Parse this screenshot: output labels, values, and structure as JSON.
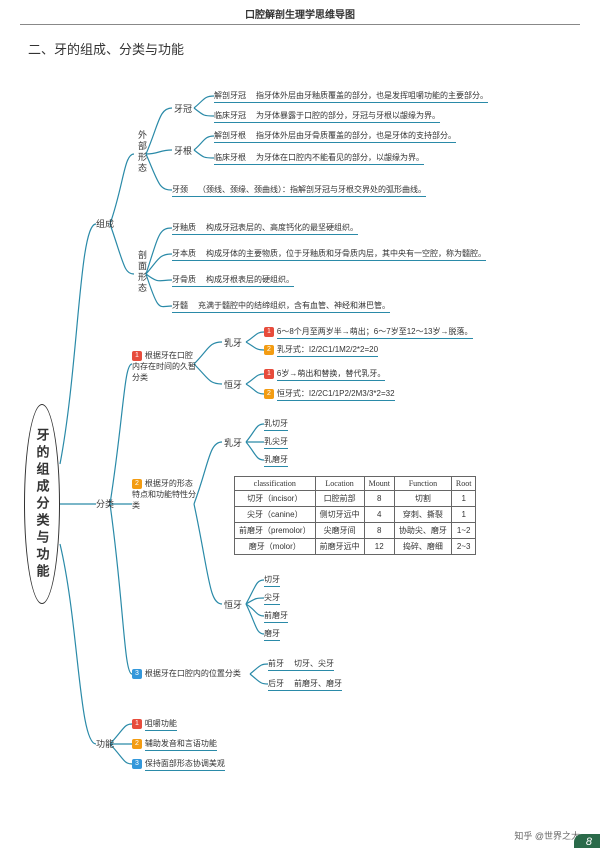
{
  "doc_header": "口腔解剖生理学思维导图",
  "section_title": "二、牙的组成、分类与功能",
  "root_label": "牙的组成分类与功能",
  "footer_text": "知乎 @世界之大",
  "page_number": "8",
  "colors": {
    "line_teal": "#2a8aa8",
    "badge_red": "#e74c3c",
    "badge_orange": "#f39c12",
    "badge_blue": "#3498db",
    "page_corner": "#2a6a4a"
  },
  "branch1": {
    "label": "组成",
    "sub1": {
      "label": "外部形态"
    },
    "sub2": {
      "label": "剖面形态"
    },
    "crown": {
      "label": "牙冠",
      "l1k": "解剖牙冠",
      "l1v": "指牙体外层由牙釉质覆盖的部分，也是发挥咀嚼功能的主要部分。",
      "l2k": "临床牙冠",
      "l2v": "为牙体暴露于口腔的部分，牙冠与牙根以龈缘为界。"
    },
    "root": {
      "label": "牙根",
      "l1k": "解剖牙根",
      "l1v": "指牙体外层由牙骨质覆盖的部分，也是牙体的支持部分。",
      "l2k": "临床牙根",
      "l2v": "为牙体在口腔内不能看见的部分，以龈缘为界。"
    },
    "neck": {
      "k": "牙颈",
      "v": "（颈线、颈缘、颈曲线）：指解剖牙冠与牙根交界处的弧形曲线。"
    },
    "enamel": {
      "k": "牙釉质",
      "v": "构成牙冠表层的、高度钙化的最坚硬组织。"
    },
    "dentin": {
      "k": "牙本质",
      "v": "构成牙体的主要物质，位于牙釉质和牙骨质内层，其中央有一空腔，称为髓腔。"
    },
    "cementum": {
      "k": "牙骨质",
      "v": "构成牙根表层的硬组织。"
    },
    "pulp": {
      "k": "牙髓",
      "v": "充满于髓腔中的结缔组织，含有血管、神经和淋巴管。"
    }
  },
  "branch2": {
    "label": "分类",
    "c1_label": "根据牙在口腔内存在时间的久暂分类",
    "c1_decid": {
      "label": "乳牙",
      "l1": "6～8个月至两岁半→萌出；6～7岁至12～13岁→脱落。",
      "l2": "乳牙式：I2/2C1/1M2/2*2=20"
    },
    "c1_perm": {
      "label": "恒牙",
      "l1": "6岁→萌出和替换，替代乳牙。",
      "l2": "恒牙式：I2/2C1/1P2/2M3/3*2=32"
    },
    "c2_label": "根据牙的形态特点和功能特性分类",
    "c2_decid": {
      "label": "乳牙",
      "i1": "乳切牙",
      "i2": "乳尖牙",
      "i3": "乳磨牙"
    },
    "c2_perm": {
      "label": "恒牙",
      "i1": "切牙",
      "i2": "尖牙",
      "i3": "前磨牙",
      "i4": "磨牙"
    },
    "c3_label": "根据牙在口腔内的位置分类",
    "c3_front": {
      "label": "前牙",
      "v": "切牙、尖牙"
    },
    "c3_back": {
      "label": "后牙",
      "v": "前磨牙、磨牙"
    }
  },
  "branch3": {
    "label": "功能",
    "f1": "咀嚼功能",
    "f2": "辅助发音和言语功能",
    "f3": "保持面部形态协调美观"
  },
  "table": {
    "headers": [
      "classification",
      "Location",
      "Mount",
      "Function",
      "Root"
    ],
    "rows": [
      [
        "切牙（incisor）",
        "口腔前部",
        "8",
        "切割",
        "1"
      ],
      [
        "尖牙（canine）",
        "侧切牙远中",
        "4",
        "穿刺、撕裂",
        "1"
      ],
      [
        "前磨牙（premolor）",
        "尖磨牙间",
        "8",
        "协助尖、磨牙",
        "1~2"
      ],
      [
        "磨牙（molor）",
        "前磨牙远中",
        "12",
        "捣碎、磨细",
        "2~3"
      ]
    ]
  }
}
